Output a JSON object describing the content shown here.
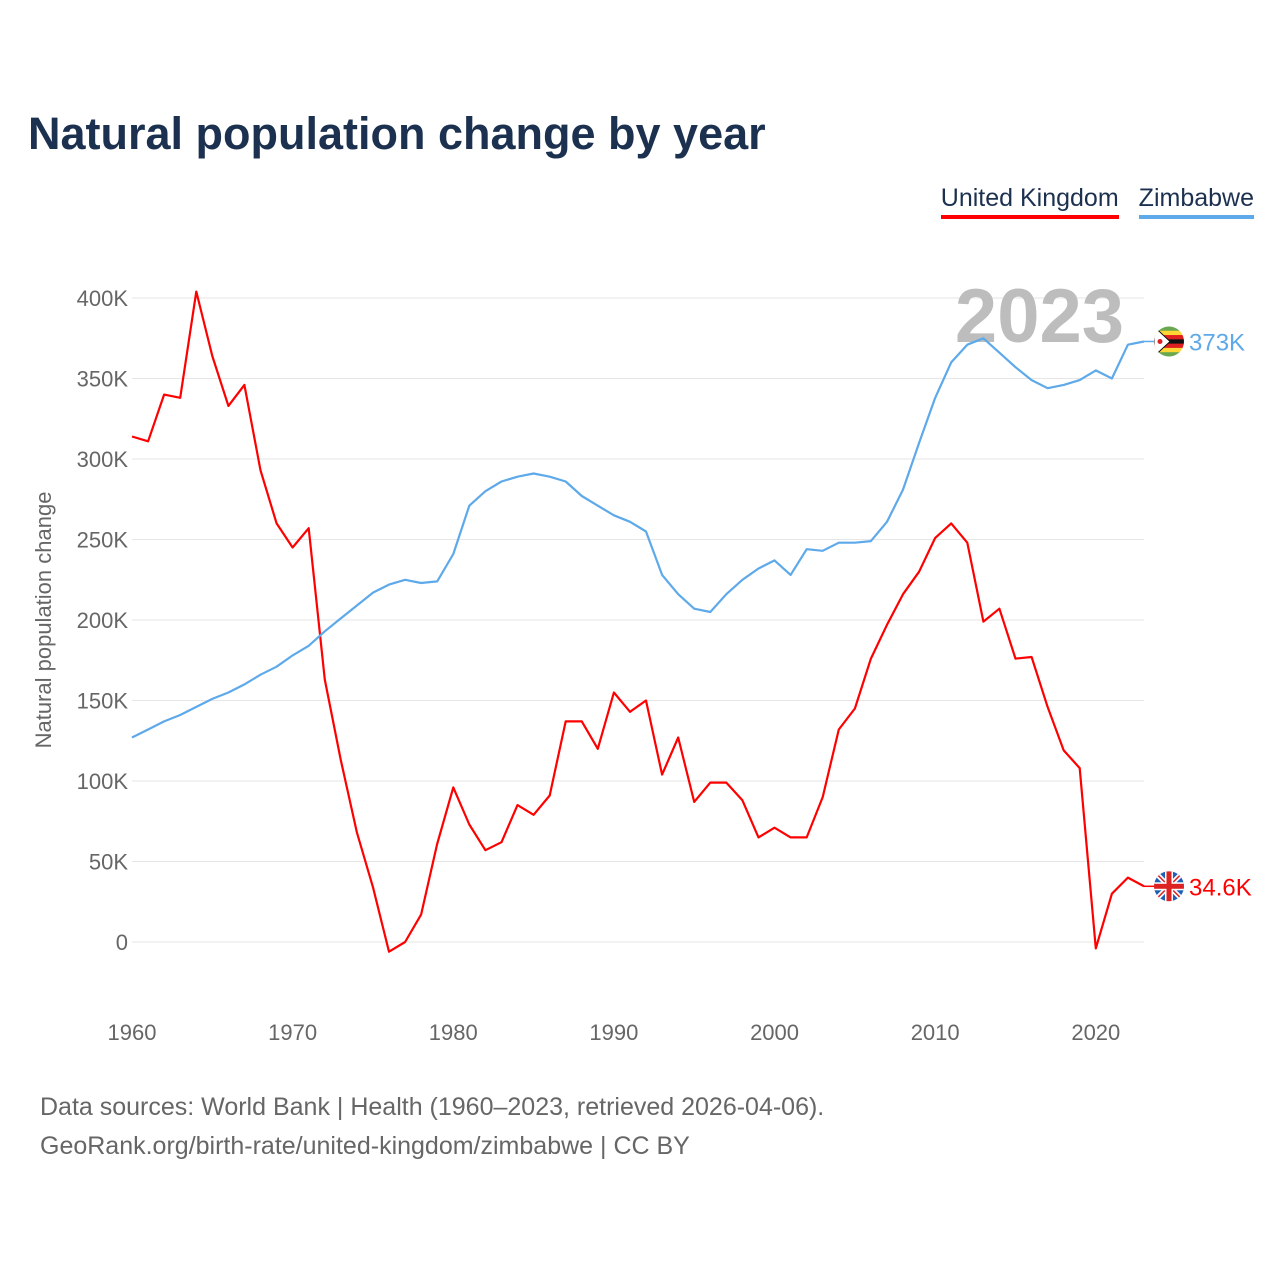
{
  "chart_data": {
    "type": "line",
    "title": "Natural population change by year",
    "xlabel": "",
    "ylabel": "Natural population change",
    "xlim": [
      1960,
      2023
    ],
    "ylim": [
      -50000,
      420000
    ],
    "x_ticks": [
      "1960",
      "1970",
      "1980",
      "1990",
      "2000",
      "2010",
      "2020"
    ],
    "y_ticks": [
      "0",
      "50K",
      "100K",
      "150K",
      "200K",
      "250K",
      "300K",
      "350K",
      "400K"
    ],
    "grid": true,
    "legend_position": "top-right",
    "year_watermark": "2023",
    "x": [
      1960,
      1961,
      1962,
      1963,
      1964,
      1965,
      1966,
      1967,
      1968,
      1969,
      1970,
      1971,
      1972,
      1973,
      1974,
      1975,
      1976,
      1977,
      1978,
      1979,
      1980,
      1981,
      1982,
      1983,
      1984,
      1985,
      1986,
      1987,
      1988,
      1989,
      1990,
      1991,
      1992,
      1993,
      1994,
      1995,
      1996,
      1997,
      1998,
      1999,
      2000,
      2001,
      2002,
      2003,
      2004,
      2005,
      2006,
      2007,
      2008,
      2009,
      2010,
      2011,
      2012,
      2013,
      2014,
      2015,
      2016,
      2017,
      2018,
      2019,
      2020,
      2021,
      2022,
      2023
    ],
    "series": [
      {
        "name": "United Kingdom",
        "color": "#ff0000",
        "end_label": "34.6K",
        "flag": "uk-flag",
        "values": [
          314000,
          311000,
          340000,
          338000,
          404000,
          364000,
          333000,
          346000,
          293000,
          260000,
          245000,
          257000,
          163000,
          113000,
          68000,
          34000,
          -6000,
          0,
          17000,
          61000,
          96000,
          73000,
          57000,
          62000,
          85000,
          79000,
          91000,
          137000,
          137000,
          120000,
          155000,
          143000,
          150000,
          104000,
          127000,
          87000,
          99000,
          99000,
          88000,
          65000,
          71000,
          65000,
          65000,
          90000,
          132000,
          145000,
          176000,
          197000,
          216000,
          230000,
          251000,
          260000,
          248000,
          199000,
          207000,
          176000,
          177000,
          146000,
          119000,
          108000,
          -4000,
          30000,
          40000,
          34600
        ]
      },
      {
        "name": "Zimbabwe",
        "color": "#5ea9ea",
        "end_label": "373K",
        "flag": "zimbabwe-flag",
        "values": [
          127000,
          132000,
          137000,
          141000,
          146000,
          151000,
          155000,
          160000,
          166000,
          171000,
          178000,
          184000,
          193000,
          201000,
          209000,
          217000,
          222000,
          225000,
          223000,
          224000,
          241000,
          271000,
          280000,
          286000,
          289000,
          291000,
          289000,
          286000,
          277000,
          271000,
          265000,
          261000,
          255000,
          228000,
          216000,
          207000,
          205000,
          216000,
          225000,
          232000,
          237000,
          228000,
          244000,
          243000,
          248000,
          248000,
          249000,
          261000,
          281000,
          310000,
          338000,
          360000,
          371000,
          375000,
          366000,
          357000,
          349000,
          344000,
          346000,
          349000,
          355000,
          350000,
          371000,
          373000
        ]
      }
    ]
  },
  "footer": {
    "line1": "Data sources: World Bank | Health (1960–2023, retrieved 2026-04-06).",
    "line2": "GeoRank.org/birth-rate/united-kingdom/zimbabwe | CC BY"
  }
}
